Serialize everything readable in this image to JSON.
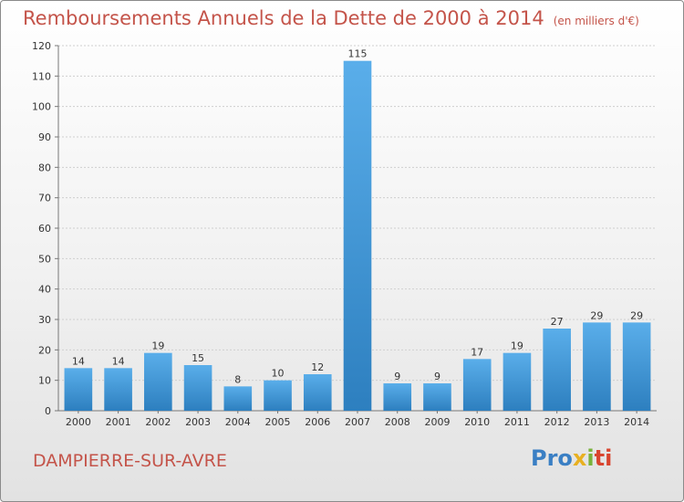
{
  "header": {
    "title": "Remboursements Annuels de la Dette de 2000 à 2014",
    "unit": "(en milliers d'€)"
  },
  "footer": {
    "commune": "DAMPIERRE-SUR-AVRE",
    "logo": {
      "part1": "Pro",
      "part2": "x",
      "part3": "i",
      "part4": "ti"
    }
  },
  "colors": {
    "title": "#c4544a",
    "bar_light": "#5aaeea",
    "bar_dark": "#2d7fbf",
    "grid": "#cfcfcf"
  },
  "chart_data": {
    "type": "bar",
    "title": "Remboursements Annuels de la Dette de 2000 à 2014",
    "subtitle": "(en milliers d'€)",
    "xlabel": "",
    "ylabel": "",
    "categories": [
      "2000",
      "2001",
      "2002",
      "2003",
      "2004",
      "2005",
      "2006",
      "2007",
      "2008",
      "2009",
      "2010",
      "2011",
      "2012",
      "2013",
      "2014"
    ],
    "values": [
      14,
      14,
      19,
      15,
      8,
      10,
      12,
      115,
      9,
      9,
      17,
      19,
      27,
      29,
      29
    ],
    "ylim": [
      0,
      120
    ],
    "yticks": [
      0,
      10,
      20,
      30,
      40,
      50,
      60,
      70,
      80,
      90,
      100,
      110,
      120
    ],
    "grid": true,
    "legend": "none"
  }
}
